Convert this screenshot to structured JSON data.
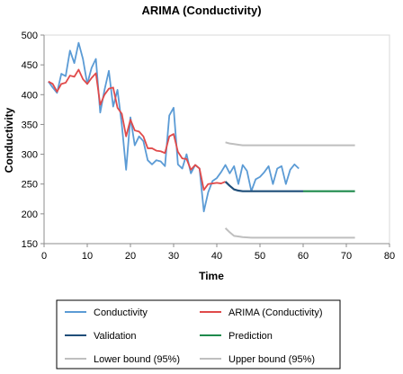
{
  "chart_data": {
    "type": "line",
    "title": "ARIMA (Conductivity)",
    "xlabel": "Time",
    "ylabel": "Conductivity",
    "xlim": [
      0,
      80
    ],
    "ylim": [
      150,
      500
    ],
    "xticks": [
      0,
      10,
      20,
      30,
      40,
      50,
      60,
      70,
      80
    ],
    "yticks": [
      150,
      200,
      250,
      300,
      350,
      400,
      450,
      500
    ],
    "grid": false,
    "legend_position": "bottom",
    "series": [
      {
        "name": "Conductivity",
        "color": "#5b9bd5",
        "x": [
          1,
          2,
          3,
          4,
          5,
          6,
          7,
          8,
          9,
          10,
          11,
          12,
          13,
          14,
          15,
          16,
          17,
          18,
          19,
          20,
          21,
          22,
          23,
          24,
          25,
          26,
          27,
          28,
          29,
          30,
          31,
          32,
          33,
          34,
          35,
          36,
          37,
          38,
          39,
          40,
          41,
          42,
          43,
          44,
          45,
          46,
          47,
          48,
          49,
          50,
          51,
          52,
          53,
          54,
          55,
          56,
          57,
          58,
          59,
          60
        ],
        "y": [
          422,
          412,
          403,
          435,
          431,
          474,
          453,
          487,
          460,
          418,
          445,
          460,
          370,
          408,
          440,
          380,
          408,
          350,
          274,
          362,
          315,
          330,
          322,
          290,
          283,
          290,
          288,
          280,
          365,
          378,
          283,
          276,
          300,
          268,
          282,
          276,
          204,
          236,
          255,
          260,
          270,
          282,
          268,
          280,
          250,
          282,
          272,
          238,
          258,
          262,
          270,
          280,
          250,
          276,
          280,
          250,
          274,
          283,
          276,
          null
        ],
        "y_note": ""
      },
      {
        "name": "ARIMA (Conductivity)",
        "color": "#e04a4a",
        "x": [
          1,
          2,
          3,
          4,
          5,
          6,
          7,
          8,
          9,
          10,
          11,
          12,
          13,
          14,
          15,
          16,
          17,
          18,
          19,
          20,
          21,
          22,
          23,
          24,
          25,
          26,
          27,
          28,
          29,
          30,
          31,
          32,
          33,
          34,
          35,
          36,
          37,
          38,
          39,
          40,
          41,
          42
        ],
        "y": [
          422,
          418,
          405,
          418,
          420,
          432,
          430,
          442,
          426,
          418,
          428,
          436,
          383,
          400,
          410,
          412,
          378,
          368,
          330,
          358,
          340,
          338,
          330,
          310,
          310,
          306,
          305,
          302,
          330,
          334,
          304,
          293,
          292,
          274,
          282,
          276,
          240,
          250,
          251,
          252,
          251,
          254
        ]
      },
      {
        "name": "Validation",
        "color": "#1f4e79",
        "x": [
          42,
          43,
          44,
          45,
          46,
          47,
          48,
          49,
          50,
          51,
          52,
          53,
          54,
          55,
          56,
          57,
          58,
          59,
          60
        ],
        "y": [
          254,
          247,
          241,
          239,
          238,
          238,
          238,
          238,
          238,
          238,
          238,
          238,
          238,
          238,
          238,
          238,
          238,
          238,
          238
        ]
      },
      {
        "name": "Prediction",
        "color": "#1e8a4c",
        "x": [
          60,
          62,
          64,
          66,
          68,
          70,
          72
        ],
        "y": [
          238,
          238,
          238,
          238,
          238,
          238,
          238
        ]
      },
      {
        "name": "Lower bound (95%)",
        "color": "#bfbfbf",
        "x": [
          42,
          43,
          44,
          45,
          46,
          48,
          50,
          55,
          60,
          65,
          70,
          72
        ],
        "y": [
          176,
          169,
          163,
          162,
          161,
          160,
          160,
          160,
          160,
          160,
          160,
          160
        ]
      },
      {
        "name": "Upper bound (95%)",
        "color": "#bfbfbf",
        "x": [
          42,
          43,
          44,
          45,
          46,
          48,
          50,
          55,
          60,
          65,
          70,
          72
        ],
        "y": [
          320,
          318,
          317,
          316,
          315,
          315,
          315,
          315,
          315,
          315,
          315,
          315
        ]
      }
    ]
  }
}
